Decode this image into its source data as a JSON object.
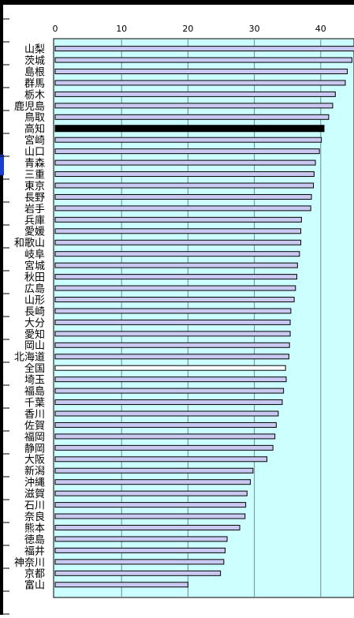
{
  "chart_data": {
    "type": "bar",
    "orientation": "horizontal",
    "title": "",
    "xlabel": "",
    "ylabel": "",
    "xlim": [
      0,
      45
    ],
    "x_ticks": [
      0,
      10,
      20,
      30,
      40
    ],
    "grid": true,
    "legend": "none",
    "colors": {
      "plot_background": "#ccffff",
      "bar_fill": "#c8c8f0",
      "bar_stroke": "#000000",
      "highlight_fill": "#000000",
      "national_fill": "#ffffff",
      "gridline": "#6e8c8c"
    },
    "highlight_category": "高知",
    "national_category": "全国",
    "categories": [
      "山梨",
      "茨城",
      "島根",
      "群馬",
      "栃木",
      "鹿児島",
      "鳥取",
      "高知",
      "宮崎",
      "山口",
      "青森",
      "三重",
      "東京",
      "長野",
      "岩手",
      "兵庫",
      "愛媛",
      "和歌山",
      "岐阜",
      "宮城",
      "秋田",
      "広島",
      "山形",
      "長崎",
      "大分",
      "愛知",
      "岡山",
      "北海道",
      "全国",
      "埼玉",
      "福島",
      "千葉",
      "香川",
      "佐賀",
      "福岡",
      "静岡",
      "大阪",
      "新潟",
      "沖縄",
      "滋賀",
      "石川",
      "奈良",
      "熊本",
      "徳島",
      "福井",
      "神奈川",
      "京都",
      "富山"
    ],
    "values": [
      45.5,
      44.7,
      44.0,
      43.7,
      42.2,
      41.8,
      41.2,
      40.5,
      40.1,
      39.8,
      39.2,
      39.0,
      38.9,
      38.6,
      38.5,
      37.1,
      37.0,
      37.0,
      36.8,
      36.5,
      36.4,
      36.2,
      36.0,
      35.5,
      35.4,
      35.4,
      35.3,
      35.2,
      34.7,
      34.8,
      34.4,
      34.2,
      33.6,
      33.3,
      33.1,
      32.8,
      31.9,
      29.8,
      29.4,
      28.9,
      28.7,
      28.6,
      27.8,
      25.9,
      25.6,
      25.4,
      24.9,
      20.0
    ]
  }
}
